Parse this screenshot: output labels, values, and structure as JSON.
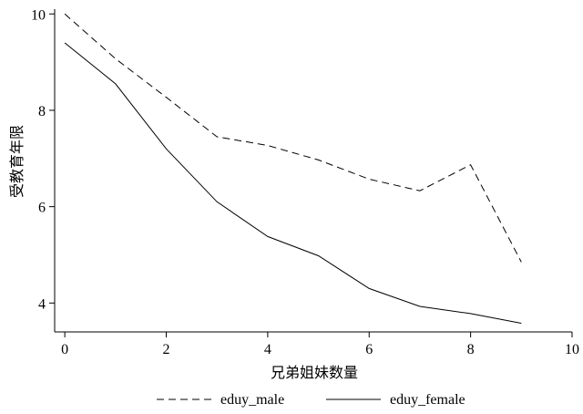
{
  "chart_data": {
    "type": "line",
    "title": "",
    "xlabel": "兄弟姐妹数量",
    "ylabel": "受教育年限",
    "xlim": [
      -0.2,
      10
    ],
    "ylim": [
      3.4,
      10.1
    ],
    "x_ticks": [
      0,
      2,
      4,
      6,
      8,
      10
    ],
    "y_ticks": [
      4,
      6,
      8,
      10
    ],
    "grid": false,
    "legend_position": "bottom",
    "series": [
      {
        "name": "eduy_male",
        "style": "dashed",
        "color": "#000000",
        "x": [
          0,
          1,
          2,
          3,
          4,
          5,
          6,
          7,
          8,
          9
        ],
        "y": [
          10.0,
          9.07,
          8.27,
          7.45,
          7.27,
          6.97,
          6.57,
          6.33,
          6.87,
          4.85
        ]
      },
      {
        "name": "eduy_female",
        "style": "solid",
        "color": "#000000",
        "x": [
          0,
          1,
          2,
          3,
          4,
          5,
          6,
          7,
          8,
          9
        ],
        "y": [
          9.4,
          8.55,
          7.2,
          6.1,
          5.38,
          4.98,
          4.3,
          3.93,
          3.78,
          3.58
        ]
      }
    ]
  }
}
